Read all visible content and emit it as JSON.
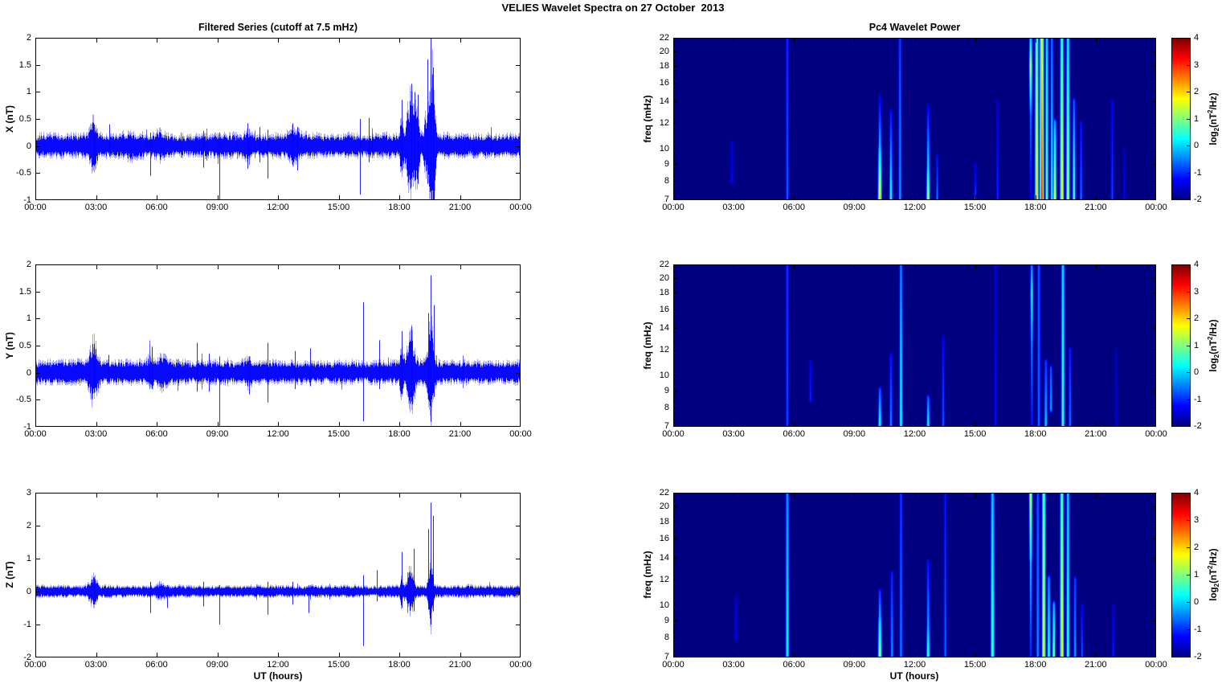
{
  "header": {
    "title": "VELIES Wavelet Spectra on 27 October  2013"
  },
  "colors": {
    "line": "#0000FF",
    "heatmap_min": "#000080",
    "background": "#FFFFFF",
    "axis": "#000000"
  },
  "chart_data": {
    "left_title": "Filtered Series (cutoff at 7.5 mHz)",
    "right_title": "Pc4 Wavelet Power",
    "xlabel": "UT (hours)",
    "freq_ylabel": "freq (mHz)",
    "xlim_hours": [
      0,
      24
    ],
    "xticks_hours": [
      0,
      3,
      6,
      9,
      12,
      15,
      18,
      21,
      24
    ],
    "xtick_labels": [
      "00:00",
      "03:00",
      "06:00",
      "09:00",
      "12:00",
      "15:00",
      "18:00",
      "21:00",
      "00:00"
    ],
    "left_panels": [
      {
        "type": "line",
        "ylabel": "X (nT)",
        "ylim": [
          -1,
          2
        ],
        "yticks": [
          -1,
          -0.5,
          0,
          0.5,
          1,
          1.5,
          2
        ],
        "ytick_labels": [
          "-1",
          "-0.5",
          "0",
          "0.5",
          "1",
          "1.5",
          "2"
        ],
        "noise_base_nT": 0.12,
        "bursts_t_amp_sigma": [
          [
            2.85,
            0.2,
            0.13
          ],
          [
            4.7,
            0.05,
            0.3
          ],
          [
            6.2,
            0.06,
            0.2
          ],
          [
            10.5,
            0.06,
            0.12
          ],
          [
            12.8,
            0.06,
            0.2
          ],
          [
            18.1,
            0.26,
            0.06
          ],
          [
            18.55,
            0.46,
            0.15
          ],
          [
            18.85,
            0.32,
            0.1
          ],
          [
            19.3,
            0.22,
            0.08
          ],
          [
            19.55,
            0.8,
            0.09
          ],
          [
            19.7,
            0.45,
            0.06
          ]
        ],
        "spikes_t_max_min": [
          [
            2.9,
            0.4,
            -0.35
          ],
          [
            3.65,
            0.4,
            -0.2
          ],
          [
            5.7,
            0.25,
            -0.55
          ],
          [
            8.3,
            0.28,
            -0.4
          ],
          [
            9.1,
            0.25,
            -1.0
          ],
          [
            10.5,
            0.42,
            -0.42
          ],
          [
            11.1,
            0.35,
            -0.3
          ],
          [
            11.5,
            0.3,
            -0.6
          ],
          [
            12.7,
            0.42,
            -0.35
          ],
          [
            12.95,
            0.35,
            -0.45
          ],
          [
            16.05,
            0.5,
            -0.9
          ],
          [
            16.5,
            0.52,
            -0.3
          ],
          [
            18.1,
            0.85,
            -0.45
          ],
          [
            18.6,
            1.15,
            -0.6
          ],
          [
            18.75,
            1.0,
            -0.65
          ],
          [
            18.9,
            0.95,
            -0.7
          ],
          [
            19.4,
            1.6,
            -0.7
          ],
          [
            19.55,
            2.0,
            -0.65
          ],
          [
            19.65,
            1.45,
            -0.6
          ]
        ]
      },
      {
        "type": "line",
        "ylabel": "Y (nT)",
        "ylim": [
          -1,
          2
        ],
        "yticks": [
          -1,
          -0.5,
          0,
          0.5,
          1,
          1.5,
          2
        ],
        "ytick_labels": [
          "-1",
          "-0.5",
          "0",
          "0.5",
          "1",
          "1.5",
          "2"
        ],
        "noise_base_nT": 0.12,
        "bursts_t_amp_sigma": [
          [
            2.85,
            0.25,
            0.15
          ],
          [
            5.7,
            0.1,
            0.1
          ],
          [
            6.3,
            0.1,
            0.15
          ],
          [
            10.5,
            0.05,
            0.15
          ],
          [
            18.1,
            0.2,
            0.06
          ],
          [
            18.55,
            0.33,
            0.15
          ],
          [
            19.55,
            0.5,
            0.1
          ]
        ],
        "spikes_t_max_min": [
          [
            2.9,
            0.5,
            -0.35
          ],
          [
            3.6,
            0.33,
            -0.2
          ],
          [
            5.75,
            0.48,
            -0.3
          ],
          [
            8.0,
            0.55,
            -0.35
          ],
          [
            8.6,
            0.35,
            -0.35
          ],
          [
            9.1,
            0.3,
            -1.0
          ],
          [
            10.55,
            0.3,
            -0.4
          ],
          [
            11.5,
            0.55,
            -0.55
          ],
          [
            12.85,
            0.4,
            -0.3
          ],
          [
            13.6,
            0.45,
            -0.25
          ],
          [
            16.2,
            1.3,
            -0.9
          ],
          [
            17.0,
            0.6,
            -0.3
          ],
          [
            18.1,
            0.77,
            -0.4
          ],
          [
            18.6,
            0.85,
            -0.5
          ],
          [
            19.45,
            1.1,
            -0.5
          ],
          [
            19.55,
            1.8,
            -0.55
          ],
          [
            19.7,
            1.25,
            -0.45
          ]
        ]
      },
      {
        "type": "line",
        "ylabel": "Z (nT)",
        "ylim": [
          -2,
          3
        ],
        "yticks": [
          -2,
          -1,
          0,
          1,
          2,
          3
        ],
        "ytick_labels": [
          "-2",
          "-1",
          "0",
          "1",
          "2",
          "3"
        ],
        "noise_base_nT": 0.1,
        "bursts_t_amp_sigma": [
          [
            2.85,
            0.18,
            0.15
          ],
          [
            6.2,
            0.06,
            0.2
          ],
          [
            18.1,
            0.22,
            0.05
          ],
          [
            18.55,
            0.35,
            0.12
          ],
          [
            19.55,
            0.6,
            0.08
          ]
        ],
        "spikes_t_max_min": [
          [
            2.9,
            0.45,
            -0.3
          ],
          [
            5.7,
            0.3,
            -0.65
          ],
          [
            6.5,
            0.2,
            -0.5
          ],
          [
            8.3,
            0.3,
            -0.45
          ],
          [
            9.1,
            0.2,
            -1.0
          ],
          [
            11.5,
            0.3,
            -0.7
          ],
          [
            12.7,
            0.3,
            -0.4
          ],
          [
            13.5,
            0.2,
            -0.65
          ],
          [
            16.2,
            0.5,
            -1.65
          ],
          [
            16.9,
            0.65,
            -0.3
          ],
          [
            18.1,
            1.2,
            -0.5
          ],
          [
            18.7,
            1.3,
            -0.6
          ],
          [
            19.45,
            1.9,
            -0.55
          ],
          [
            19.55,
            2.7,
            -0.7
          ],
          [
            19.65,
            2.3,
            -0.6
          ]
        ]
      }
    ],
    "right_panels": [
      {
        "type": "heatmap",
        "flim_mHz": [
          7,
          22
        ],
        "yscale": "log",
        "yticks": [
          7,
          8,
          9,
          10,
          12,
          14,
          16,
          18,
          20,
          22
        ],
        "ytick_labels": [
          "7",
          "8",
          "9",
          "10",
          "12",
          "14",
          "16",
          "18",
          "20",
          "22"
        ],
        "background_log2_power": -2,
        "streaks_t_flo_fhi_plo_phi_sigma": [
          [
            2.9,
            8,
            10.5,
            -1.3,
            -1.5,
            0.06
          ],
          [
            5.65,
            7,
            22,
            -0.55,
            -0.95,
            0.05
          ],
          [
            10.25,
            7,
            10,
            2.3,
            0.2,
            0.06
          ],
          [
            10.25,
            10,
            14.5,
            0.2,
            -1.3,
            0.05
          ],
          [
            10.8,
            7,
            13,
            0.7,
            -1.1,
            0.05
          ],
          [
            11.25,
            7,
            22,
            -0.15,
            -0.8,
            0.05
          ],
          [
            12.65,
            7,
            8.5,
            1.7,
            0.5,
            0.055
          ],
          [
            12.65,
            8.5,
            13.5,
            0.5,
            -1.2,
            0.05
          ],
          [
            13.1,
            7,
            9.5,
            -0.3,
            -1.2,
            0.04
          ],
          [
            15.0,
            7,
            9,
            -0.8,
            -1.4,
            0.045
          ],
          [
            16.1,
            7,
            14,
            -0.9,
            -1.4,
            0.04
          ],
          [
            17.75,
            13,
            18,
            -0.3,
            1.7,
            0.05
          ],
          [
            17.75,
            18,
            22,
            1.7,
            0.2,
            0.05
          ],
          [
            17.75,
            7,
            13,
            -1.3,
            -0.3,
            0.04
          ],
          [
            18.05,
            7,
            22,
            2.1,
            0.9,
            0.06
          ],
          [
            18.3,
            7,
            22,
            3.3,
            1.9,
            0.065
          ],
          [
            18.55,
            7,
            22,
            1.2,
            0.2,
            0.05
          ],
          [
            18.8,
            7,
            22,
            0.6,
            -0.4,
            0.045
          ],
          [
            18.95,
            7,
            12,
            2.0,
            0.0,
            0.05
          ],
          [
            19.3,
            7,
            22,
            2.2,
            0.8,
            0.06
          ],
          [
            19.6,
            7,
            22,
            1.7,
            0.4,
            0.055
          ],
          [
            19.9,
            7,
            14,
            1.0,
            -0.6,
            0.05
          ],
          [
            20.25,
            7,
            12,
            -0.4,
            -1.1,
            0.045
          ],
          [
            21.8,
            7,
            14,
            -0.7,
            -1.3,
            0.045
          ],
          [
            22.4,
            7,
            10,
            -1.2,
            -1.6,
            0.04
          ]
        ]
      },
      {
        "type": "heatmap",
        "flim_mHz": [
          7,
          22
        ],
        "yscale": "log",
        "yticks": [
          7,
          8,
          9,
          10,
          12,
          14,
          16,
          18,
          20,
          22
        ],
        "ytick_labels": [
          "7",
          "8",
          "9",
          "10",
          "12",
          "14",
          "16",
          "18",
          "20",
          "22"
        ],
        "background_log2_power": -2,
        "streaks_t_flo_fhi_plo_phi_sigma": [
          [
            5.65,
            7,
            22,
            -0.7,
            -0.85,
            0.05
          ],
          [
            6.8,
            8.5,
            11,
            -1.0,
            -1.3,
            0.05
          ],
          [
            10.25,
            7,
            9,
            0.7,
            -0.6,
            0.055
          ],
          [
            10.8,
            7,
            11.5,
            -0.25,
            -1.1,
            0.05
          ],
          [
            11.3,
            7,
            22,
            0.8,
            -0.3,
            0.05
          ],
          [
            12.65,
            7,
            8.5,
            0.7,
            -0.5,
            0.05
          ],
          [
            13.4,
            7,
            13,
            -0.6,
            -1.2,
            0.045
          ],
          [
            16.0,
            7,
            22,
            -1.1,
            -1.3,
            0.04
          ],
          [
            17.8,
            13,
            18,
            -0.2,
            0.6,
            0.05
          ],
          [
            17.8,
            18,
            22,
            0.6,
            -0.4,
            0.05
          ],
          [
            17.8,
            7,
            13,
            -1.1,
            -0.2,
            0.04
          ],
          [
            18.15,
            7,
            22,
            -0.45,
            -0.6,
            0.05
          ],
          [
            18.5,
            7,
            11,
            0.25,
            -0.8,
            0.05
          ],
          [
            18.75,
            8,
            10.5,
            0.0,
            -0.6,
            0.045
          ],
          [
            19.35,
            7,
            22,
            0.9,
            0.2,
            0.055
          ],
          [
            19.7,
            7,
            12,
            -0.3,
            -1.0,
            0.045
          ],
          [
            22.0,
            7,
            12,
            -1.3,
            -1.6,
            0.04
          ]
        ]
      },
      {
        "type": "heatmap",
        "flim_mHz": [
          7,
          22
        ],
        "yscale": "log",
        "yticks": [
          7,
          8,
          9,
          10,
          12,
          14,
          16,
          18,
          20,
          22
        ],
        "ytick_labels": [
          "7",
          "8",
          "9",
          "10",
          "12",
          "14",
          "16",
          "18",
          "20",
          "22"
        ],
        "background_log2_power": -2,
        "streaks_t_flo_fhi_plo_phi_sigma": [
          [
            3.1,
            8,
            10.5,
            -1.2,
            -1.45,
            0.045
          ],
          [
            5.65,
            7,
            22,
            0.6,
            -0.25,
            0.055
          ],
          [
            10.25,
            7,
            9,
            1.6,
            0.2,
            0.06
          ],
          [
            10.25,
            9,
            11,
            0.2,
            -0.8,
            0.05
          ],
          [
            10.85,
            7,
            12.5,
            -0.2,
            -1.0,
            0.05
          ],
          [
            11.3,
            7,
            22,
            -0.3,
            -0.8,
            0.05
          ],
          [
            12.65,
            7,
            8.5,
            1.0,
            0.0,
            0.055
          ],
          [
            12.65,
            8.5,
            13.5,
            0.0,
            -1.1,
            0.05
          ],
          [
            13.5,
            7,
            22,
            -0.5,
            -1.1,
            0.045
          ],
          [
            15.85,
            7,
            22,
            1.0,
            0.1,
            0.06
          ],
          [
            17.75,
            14,
            22,
            0.3,
            1.9,
            0.05
          ],
          [
            17.75,
            7,
            14,
            -0.9,
            0.3,
            0.04
          ],
          [
            18.1,
            7,
            22,
            -0.2,
            -0.6,
            0.05
          ],
          [
            18.4,
            7,
            22,
            2.0,
            1.0,
            0.06
          ],
          [
            18.65,
            7,
            12,
            1.0,
            -0.3,
            0.05
          ],
          [
            18.9,
            7,
            10,
            1.5,
            0.0,
            0.05
          ],
          [
            19.3,
            7,
            22,
            2.2,
            1.0,
            0.06
          ],
          [
            19.6,
            7,
            22,
            1.0,
            0.2,
            0.05
          ],
          [
            19.95,
            7,
            12,
            0.0,
            -0.8,
            0.045
          ],
          [
            20.3,
            7,
            10,
            -0.6,
            -1.2,
            0.04
          ],
          [
            21.85,
            7,
            10,
            -1.0,
            -1.4,
            0.04
          ]
        ]
      }
    ],
    "colorbar": {
      "vmin": -2,
      "vmax": 4,
      "ticks": [
        4,
        3,
        2,
        1,
        0,
        -1,
        -2
      ],
      "tick_labels": [
        "4",
        "3",
        "2",
        "1",
        "0",
        "-1",
        "-2"
      ],
      "label_parts": {
        "pre": "log",
        "sub": "2",
        "mid": "(nT",
        "sup": "2",
        "post": "/Hz)"
      }
    }
  }
}
